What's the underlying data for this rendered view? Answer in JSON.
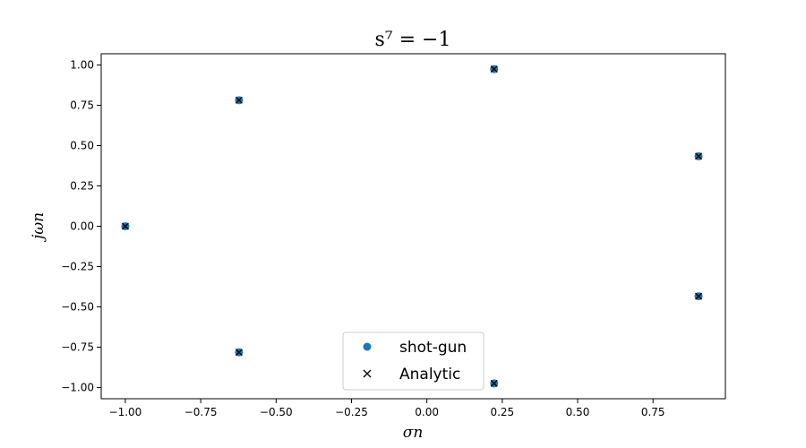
{
  "chart_data": {
    "type": "scatter",
    "title": "s⁷ = −1",
    "xlabel": "σn",
    "ylabel": "jωn",
    "xlim": [
      -1.08,
      0.99
    ],
    "ylim": [
      -1.07,
      1.07
    ],
    "xticks": [
      -1.0,
      -0.75,
      -0.5,
      -0.25,
      0.0,
      0.25,
      0.5,
      0.75
    ],
    "xtick_labels": [
      "−1.00",
      "−0.75",
      "−0.50",
      "−0.25",
      "0.00",
      "0.25",
      "0.50",
      "0.75"
    ],
    "yticks": [
      1.0,
      0.75,
      0.5,
      0.25,
      0.0,
      -0.25,
      -0.5,
      -0.75,
      -1.0
    ],
    "ytick_labels": [
      "1.00",
      "0.75",
      "0.50",
      "0.25",
      "0.00",
      "−0.25",
      "−0.50",
      "−0.75",
      "−1.00"
    ],
    "legend_position": "bottom-center",
    "series": [
      {
        "name": "shot-gun",
        "marker": "circle",
        "color": "#1f77b4",
        "points": [
          [
            0.901,
            0.434
          ],
          [
            0.223,
            0.975
          ],
          [
            -0.623,
            0.782
          ],
          [
            -1.0,
            0.0
          ],
          [
            -0.623,
            -0.782
          ],
          [
            0.223,
            -0.975
          ],
          [
            0.901,
            -0.434
          ]
        ]
      },
      {
        "name": "Analytic",
        "marker": "x",
        "color": "#000000",
        "points": [
          [
            0.901,
            0.434
          ],
          [
            0.223,
            0.975
          ],
          [
            -0.623,
            0.782
          ],
          [
            -1.0,
            0.0
          ],
          [
            -0.623,
            -0.782
          ],
          [
            0.223,
            -0.975
          ],
          [
            0.901,
            -0.434
          ]
        ]
      }
    ]
  }
}
